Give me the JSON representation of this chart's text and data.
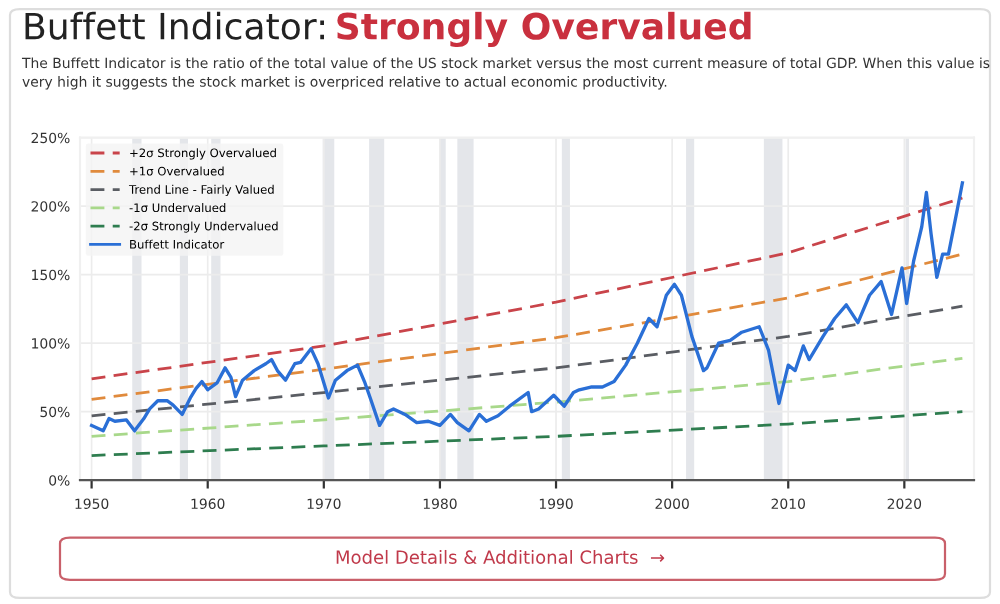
{
  "chart_data": {
    "type": "line",
    "title": "Buffett Indicator:",
    "subtitle": "The Buffett Indicator is the ratio of the total value of the US stock market versus the most current measure of total GDP. When this value is very high it suggests the stock market is overpriced relative to actual economic productivity.",
    "annotations": [
      "Strongly Overvalued",
      "Model Details & Additional Charts  →"
    ],
    "xlim": [
      1949,
      2026
    ],
    "xticks": [
      1950,
      1960,
      1970,
      1980,
      1990,
      2000,
      2010,
      2020
    ],
    "ylim": [
      0,
      250
    ],
    "yticks": [
      {
        "value": 0,
        "label": "0%"
      },
      {
        "value": 50,
        "label": "50%"
      },
      {
        "value": 100,
        "label": "100%"
      },
      {
        "value": 150,
        "label": "150%"
      },
      {
        "value": 200,
        "label": "200%"
      },
      {
        "value": 250,
        "label": "250%"
      }
    ],
    "grid": true,
    "legend": "top left",
    "line_style": "dashed",
    "bands": [
      {
        "axis": "x",
        "from": 1953.5,
        "to": 1954.3,
        "color": "#e4e6ea"
      },
      {
        "axis": "x",
        "from": 1957.6,
        "to": 1958.3,
        "color": "#e4e6ea"
      },
      {
        "axis": "x",
        "from": 1960.3,
        "to": 1961.1,
        "color": "#e4e6ea"
      },
      {
        "axis": "x",
        "from": 1969.9,
        "to": 1970.9,
        "color": "#e4e6ea"
      },
      {
        "axis": "x",
        "from": 1973.9,
        "to": 1975.2,
        "color": "#e4e6ea"
      },
      {
        "axis": "x",
        "from": 1980.0,
        "to": 1980.5,
        "color": "#e4e6ea"
      },
      {
        "axis": "x",
        "from": 1981.5,
        "to": 1982.9,
        "color": "#e4e6ea"
      },
      {
        "axis": "x",
        "from": 1990.5,
        "to": 1991.2,
        "color": "#e4e6ea"
      },
      {
        "axis": "x",
        "from": 2001.2,
        "to": 2001.9,
        "color": "#e4e6ea"
      },
      {
        "axis": "x",
        "from": 2007.9,
        "to": 2009.5,
        "color": "#e4e6ea"
      },
      {
        "axis": "x",
        "from": 2020.1,
        "to": 2020.4,
        "color": "#e4e6ea"
      }
    ],
    "series": [
      {
        "name": "+2σ Strongly Overvalued",
        "color": "#c9444a",
        "x": [
          1950,
          1970,
          1990,
          2010,
          2025
        ],
        "values": [
          74,
          98,
          130,
          166,
          206
        ]
      },
      {
        "name": "+1σ Overvalued",
        "color": "#e08a3c",
        "x": [
          1950,
          1970,
          1990,
          2010,
          2025
        ],
        "values": [
          59,
          81,
          104,
          133,
          165
        ]
      },
      {
        "name": "Trend Line - Fairly Valued",
        "color": "#5a5d63",
        "x": [
          1950,
          1970,
          1990,
          2010,
          2025
        ],
        "values": [
          47,
          64,
          82,
          105,
          127
        ]
      },
      {
        "name": "-1σ Undervalued",
        "color": "#a8d88a",
        "x": [
          1950,
          1970,
          1990,
          2010,
          2025
        ],
        "values": [
          32,
          44,
          57,
          72,
          89
        ]
      },
      {
        "name": "-2σ Strongly Undervalued",
        "color": "#2e7d4f",
        "x": [
          1950,
          1970,
          1990,
          2010,
          2025
        ],
        "values": [
          18,
          25,
          32,
          41,
          50
        ]
      },
      {
        "name": "Buffett Indicator",
        "color": "#2a6fd6",
        "line_style": "solid",
        "x": [
          1950,
          1951,
          1951.5,
          1952,
          1953,
          1953.7,
          1954.5,
          1955,
          1955.7,
          1956.5,
          1957,
          1957.8,
          1958.5,
          1959,
          1959.5,
          1960,
          1960.8,
          1961.5,
          1962,
          1962.4,
          1963,
          1964,
          1965,
          1965.5,
          1966,
          1966.7,
          1967.5,
          1968,
          1968.9,
          1969.5,
          1970.4,
          1971,
          1972,
          1972.9,
          1973.5,
          1974,
          1974.8,
          1975.5,
          1976,
          1977,
          1978,
          1979,
          1980,
          1980.9,
          1981.5,
          1982.5,
          1983.4,
          1984,
          1985,
          1986,
          1987.6,
          1987.9,
          1988.5,
          1989.8,
          1990.7,
          1991.5,
          1992,
          1993,
          1994,
          1995,
          1996,
          1997,
          1998,
          1998.7,
          1999.5,
          2000.2,
          2000.8,
          2001.7,
          2002.7,
          2003,
          2004,
          2005,
          2006,
          2007.5,
          2008.3,
          2009.2,
          2010,
          2010.6,
          2011.3,
          2011.8,
          2013,
          2014,
          2015,
          2016,
          2017,
          2018,
          2018.9,
          2019.8,
          2020.2,
          2020.8,
          2021.5,
          2021.9,
          2022.3,
          2022.8,
          2023.3,
          2023.8,
          2024.5,
          2025
        ],
        "values": [
          40,
          36,
          45,
          43,
          44,
          36,
          45,
          52,
          58,
          58,
          55,
          48,
          60,
          67,
          72,
          66,
          71,
          82,
          75,
          61,
          73,
          80,
          85,
          88,
          80,
          73,
          85,
          86,
          96,
          85,
          60,
          73,
          80,
          84,
          72,
          60,
          40,
          50,
          52,
          48,
          42,
          43,
          40,
          48,
          42,
          36,
          48,
          43,
          47,
          54,
          64,
          50,
          52,
          62,
          54,
          64,
          66,
          68,
          68,
          72,
          84,
          100,
          118,
          112,
          135,
          143,
          135,
          105,
          80,
          82,
          100,
          102,
          108,
          112,
          95,
          56,
          84,
          80,
          98,
          88,
          105,
          118,
          128,
          115,
          135,
          145,
          121,
          155,
          129,
          160,
          185,
          210,
          180,
          148,
          165,
          165,
          195,
          217
        ]
      }
    ]
  }
}
